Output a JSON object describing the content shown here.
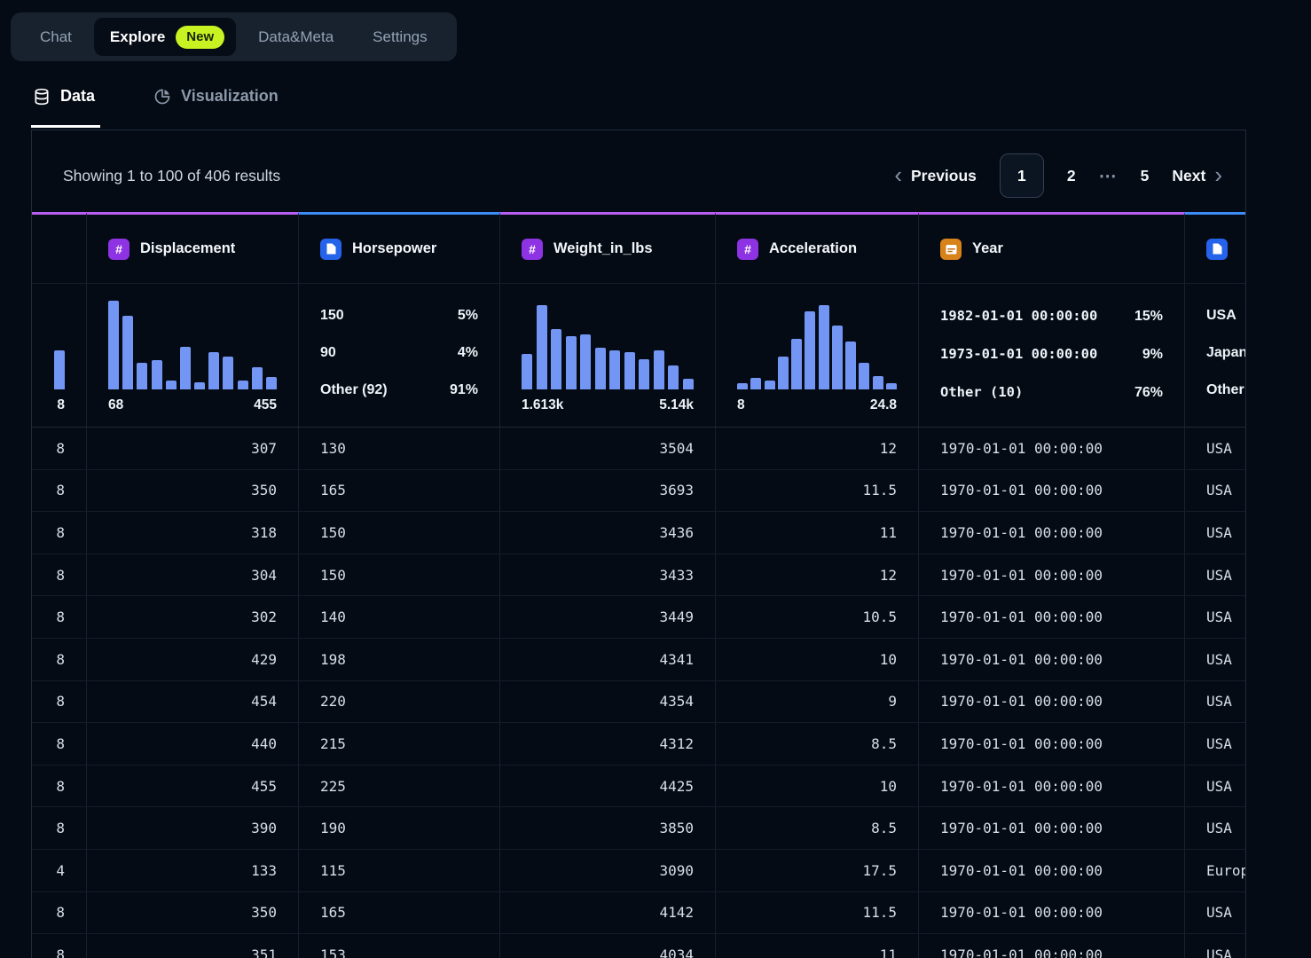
{
  "nav": {
    "chat": "Chat",
    "explore": "Explore",
    "explore_badge": "New",
    "data_meta": "Data&Meta",
    "settings": "Settings"
  },
  "tabs": {
    "data": "Data",
    "visualization": "Visualization"
  },
  "results_summary": "Showing 1 to 100 of 406 results",
  "pagination": {
    "previous": "Previous",
    "page1": "1",
    "page2": "2",
    "ellipsis": "⋯",
    "page5": "5",
    "next": "Next"
  },
  "colors": {
    "type": {
      "number": "#b95ef2",
      "string": "#3e8cf8",
      "date": "#b95ef2"
    },
    "icon": {
      "number": "#8d33e3",
      "string": "#2563eb",
      "date": "#d8821a"
    },
    "bar": "#7396f5",
    "badge": "#c9f222"
  },
  "table": {
    "columns": [
      {
        "key": "cylinders",
        "type": "number",
        "header": "",
        "icon": false,
        "summary": {
          "type": "histogram",
          "hist": [
            0.44
          ],
          "min_label": "",
          "max_label": "8",
          "align": "right"
        }
      },
      {
        "key": "displacement",
        "type": "number",
        "header": "Displacement",
        "icon": true,
        "summary": {
          "type": "histogram",
          "hist": [
            1.0,
            0.83,
            0.3,
            0.33,
            0.1,
            0.48,
            0.08,
            0.42,
            0.37,
            0.1,
            0.25,
            0.14
          ],
          "min_label": "68",
          "max_label": "455"
        }
      },
      {
        "key": "horsepower",
        "type": "string",
        "header": "Horsepower",
        "icon": true,
        "summary": {
          "type": "topk",
          "items": [
            {
              "label": "150",
              "value": "5%"
            },
            {
              "label": "90",
              "value": "4%"
            },
            {
              "label": "Other (92)",
              "value": "91%"
            }
          ]
        }
      },
      {
        "key": "weight_in_lbs",
        "type": "number",
        "header": "Weight_in_lbs",
        "icon": true,
        "summary": {
          "type": "histogram",
          "hist": [
            0.4,
            0.95,
            0.68,
            0.6,
            0.62,
            0.47,
            0.44,
            0.42,
            0.34,
            0.44,
            0.27,
            0.12
          ],
          "min_label": "1.613k",
          "max_label": "5.14k"
        }
      },
      {
        "key": "acceleration",
        "type": "number",
        "header": "Acceleration",
        "icon": true,
        "summary": {
          "type": "histogram",
          "hist": [
            0.07,
            0.13,
            0.1,
            0.37,
            0.57,
            0.88,
            0.95,
            0.72,
            0.54,
            0.3,
            0.15,
            0.07
          ],
          "min_label": "8",
          "max_label": "24.8"
        }
      },
      {
        "key": "year",
        "type": "date",
        "header": "Year",
        "icon": true,
        "summary": {
          "type": "topk",
          "mono": true,
          "items": [
            {
              "label": "1982-01-01 00:00:00",
              "value": "15%"
            },
            {
              "label": "1973-01-01 00:00:00",
              "value": "9%"
            },
            {
              "label": "Other (10)",
              "value": "76%"
            }
          ]
        }
      },
      {
        "key": "origin",
        "type": "string",
        "header": "",
        "icon": true,
        "summary": {
          "type": "topk",
          "items": [
            {
              "label": "USA",
              "value": ""
            },
            {
              "label": "Japan",
              "value": ""
            },
            {
              "label": "Other",
              "value": ""
            }
          ]
        }
      }
    ],
    "rows": [
      {
        "cylinders": "8",
        "displacement": "307",
        "horsepower": "130",
        "weight_in_lbs": "3504",
        "acceleration": "12",
        "year": "1970-01-01 00:00:00",
        "origin": "USA"
      },
      {
        "cylinders": "8",
        "displacement": "350",
        "horsepower": "165",
        "weight_in_lbs": "3693",
        "acceleration": "11.5",
        "year": "1970-01-01 00:00:00",
        "origin": "USA"
      },
      {
        "cylinders": "8",
        "displacement": "318",
        "horsepower": "150",
        "weight_in_lbs": "3436",
        "acceleration": "11",
        "year": "1970-01-01 00:00:00",
        "origin": "USA"
      },
      {
        "cylinders": "8",
        "displacement": "304",
        "horsepower": "150",
        "weight_in_lbs": "3433",
        "acceleration": "12",
        "year": "1970-01-01 00:00:00",
        "origin": "USA"
      },
      {
        "cylinders": "8",
        "displacement": "302",
        "horsepower": "140",
        "weight_in_lbs": "3449",
        "acceleration": "10.5",
        "year": "1970-01-01 00:00:00",
        "origin": "USA"
      },
      {
        "cylinders": "8",
        "displacement": "429",
        "horsepower": "198",
        "weight_in_lbs": "4341",
        "acceleration": "10",
        "year": "1970-01-01 00:00:00",
        "origin": "USA"
      },
      {
        "cylinders": "8",
        "displacement": "454",
        "horsepower": "220",
        "weight_in_lbs": "4354",
        "acceleration": "9",
        "year": "1970-01-01 00:00:00",
        "origin": "USA"
      },
      {
        "cylinders": "8",
        "displacement": "440",
        "horsepower": "215",
        "weight_in_lbs": "4312",
        "acceleration": "8.5",
        "year": "1970-01-01 00:00:00",
        "origin": "USA"
      },
      {
        "cylinders": "8",
        "displacement": "455",
        "horsepower": "225",
        "weight_in_lbs": "4425",
        "acceleration": "10",
        "year": "1970-01-01 00:00:00",
        "origin": "USA"
      },
      {
        "cylinders": "8",
        "displacement": "390",
        "horsepower": "190",
        "weight_in_lbs": "3850",
        "acceleration": "8.5",
        "year": "1970-01-01 00:00:00",
        "origin": "USA"
      },
      {
        "cylinders": "4",
        "displacement": "133",
        "horsepower": "115",
        "weight_in_lbs": "3090",
        "acceleration": "17.5",
        "year": "1970-01-01 00:00:00",
        "origin": "Europe"
      },
      {
        "cylinders": "8",
        "displacement": "350",
        "horsepower": "165",
        "weight_in_lbs": "4142",
        "acceleration": "11.5",
        "year": "1970-01-01 00:00:00",
        "origin": "USA"
      },
      {
        "cylinders": "8",
        "displacement": "351",
        "horsepower": "153",
        "weight_in_lbs": "4034",
        "acceleration": "11",
        "year": "1970-01-01 00:00:00",
        "origin": "USA"
      }
    ]
  }
}
